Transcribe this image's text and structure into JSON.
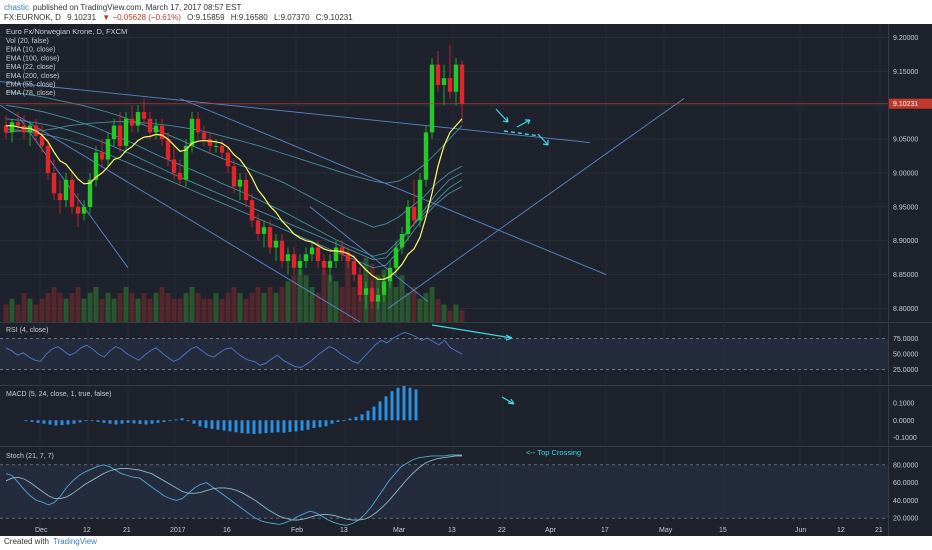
{
  "header": {
    "user": "chastic",
    "published_text": "published on TradingView.com, March 17, 2017 08:57 EST",
    "symbol": "FX:EURNOK, D",
    "last": "9.10231",
    "change": "▼ −0.05628 (−0.61%)",
    "open": "O:9.15859",
    "high": "H:9.16580",
    "low": "L:9.07370",
    "close": "C:9.10231"
  },
  "footer": {
    "created_with": "Created with",
    "brand": "TradingView"
  },
  "colors": {
    "background": "#1e222d",
    "bull": "#26c926",
    "bear": "#e0262a",
    "ema_short": "#ffff66",
    "ema_lines": "#4fa0b0",
    "trendline": "#5a86c8",
    "annotation": "#40d8e0",
    "price_line": "#c0392b"
  },
  "chart_data": [
    {
      "type": "candlestick",
      "title": "Euro Fx/Norwegian Krone, D, FXCM",
      "legend": [
        "Vol (20, false)",
        "EMA (10, close)",
        "EMA (100, close)",
        "EMA (22, close)",
        "EMA (200, close)",
        "EMA (55, close)",
        "EMA (78, close)"
      ],
      "y_ticks": [
        "9.20000",
        "9.15000",
        "9.10000",
        "9.05000",
        "9.00000",
        "8.95000",
        "8.90000",
        "8.85000",
        "8.80000"
      ],
      "ylim": [
        8.78,
        9.22
      ],
      "price_label": "9.10231",
      "x_ticks": [
        "Dec",
        "12",
        "21",
        "2017",
        "16",
        "Feb",
        "13",
        "Mar",
        "13",
        "22",
        "Apr",
        "17",
        "May",
        "15",
        "Jun",
        "12",
        "21"
      ],
      "ohlc": [
        [
          9.07,
          9.085,
          9.05,
          9.06
        ],
        [
          9.06,
          9.08,
          9.045,
          9.075
        ],
        [
          9.075,
          9.09,
          9.06,
          9.07
        ],
        [
          9.07,
          9.085,
          9.05,
          9.06
        ],
        [
          9.06,
          9.075,
          9.04,
          9.07
        ],
        [
          9.07,
          9.08,
          9.045,
          9.055
        ],
        [
          9.055,
          9.07,
          9.03,
          9.04
        ],
        [
          9.04,
          9.05,
          8.99,
          9.0
        ],
        [
          9.0,
          9.02,
          8.96,
          8.97
        ],
        [
          8.97,
          8.99,
          8.94,
          8.96
        ],
        [
          8.96,
          9.0,
          8.95,
          8.99
        ],
        [
          8.99,
          9.0,
          8.94,
          8.95
        ],
        [
          8.95,
          8.97,
          8.92,
          8.94
        ],
        [
          8.94,
          8.96,
          8.93,
          8.95
        ],
        [
          8.95,
          9.0,
          8.94,
          8.99
        ],
        [
          8.99,
          9.04,
          8.98,
          9.03
        ],
        [
          9.03,
          9.05,
          9.01,
          9.02
        ],
        [
          9.02,
          9.06,
          9.01,
          9.05
        ],
        [
          9.05,
          9.08,
          9.04,
          9.07
        ],
        [
          9.07,
          9.09,
          9.03,
          9.04
        ],
        [
          9.04,
          9.09,
          9.03,
          9.08
        ],
        [
          9.08,
          9.1,
          9.06,
          9.07
        ],
        [
          9.07,
          9.1,
          9.06,
          9.09
        ],
        [
          9.09,
          9.11,
          9.07,
          9.08
        ],
        [
          9.08,
          9.09,
          9.05,
          9.06
        ],
        [
          9.06,
          9.08,
          9.05,
          9.07
        ],
        [
          9.07,
          9.08,
          9.04,
          9.05
        ],
        [
          9.05,
          9.06,
          9.01,
          9.02
        ],
        [
          9.02,
          9.04,
          8.99,
          9.0
        ],
        [
          9.0,
          9.02,
          8.98,
          8.99
        ],
        [
          8.99,
          9.05,
          8.98,
          9.04
        ],
        [
          9.04,
          9.09,
          9.03,
          9.08
        ],
        [
          9.08,
          9.09,
          9.05,
          9.06
        ],
        [
          9.06,
          9.07,
          9.04,
          9.05
        ],
        [
          9.05,
          9.06,
          9.03,
          9.04
        ],
        [
          9.04,
          9.05,
          9.03,
          9.04
        ],
        [
          9.04,
          9.05,
          9.02,
          9.03
        ],
        [
          9.03,
          9.04,
          9.0,
          9.01
        ],
        [
          9.01,
          9.02,
          8.97,
          8.98
        ],
        [
          8.98,
          9.0,
          8.96,
          8.99
        ],
        [
          8.99,
          9.0,
          8.95,
          8.96
        ],
        [
          8.96,
          8.97,
          8.92,
          8.93
        ],
        [
          8.93,
          8.94,
          8.9,
          8.91
        ],
        [
          8.91,
          8.93,
          8.89,
          8.92
        ],
        [
          8.92,
          8.93,
          8.88,
          8.89
        ],
        [
          8.89,
          8.91,
          8.87,
          8.9
        ],
        [
          8.9,
          8.91,
          8.86,
          8.87
        ],
        [
          8.87,
          8.89,
          8.85,
          8.88
        ],
        [
          8.88,
          8.89,
          8.85,
          8.86
        ],
        [
          8.86,
          8.88,
          8.85,
          8.87
        ],
        [
          8.87,
          8.89,
          8.86,
          8.88
        ],
        [
          8.88,
          8.9,
          8.87,
          8.89
        ],
        [
          8.89,
          8.9,
          8.86,
          8.87
        ],
        [
          8.87,
          8.88,
          8.85,
          8.86
        ],
        [
          8.86,
          8.88,
          8.84,
          8.87
        ],
        [
          8.87,
          8.9,
          8.86,
          8.89
        ],
        [
          8.89,
          8.9,
          8.87,
          8.88
        ],
        [
          8.88,
          8.89,
          8.86,
          8.87
        ],
        [
          8.87,
          8.88,
          8.84,
          8.85
        ],
        [
          8.85,
          8.86,
          8.81,
          8.82
        ],
        [
          8.82,
          8.84,
          8.8,
          8.83
        ],
        [
          8.83,
          8.84,
          8.8,
          8.81
        ],
        [
          8.81,
          8.83,
          8.8,
          8.82
        ],
        [
          8.82,
          8.85,
          8.81,
          8.84
        ],
        [
          8.84,
          8.87,
          8.83,
          8.86
        ],
        [
          8.86,
          8.9,
          8.85,
          8.89
        ],
        [
          8.89,
          8.92,
          8.88,
          8.91
        ],
        [
          8.91,
          8.96,
          8.9,
          8.95
        ],
        [
          8.95,
          8.99,
          8.92,
          8.93
        ],
        [
          8.93,
          9.0,
          8.92,
          8.99
        ],
        [
          8.99,
          9.07,
          8.98,
          9.06
        ],
        [
          9.06,
          9.17,
          9.05,
          9.16
        ],
        [
          9.16,
          9.18,
          9.12,
          9.13
        ],
        [
          9.13,
          9.16,
          9.1,
          9.14
        ],
        [
          9.14,
          9.19,
          9.11,
          9.12
        ],
        [
          9.12,
          9.17,
          9.1,
          9.16
        ],
        [
          9.16,
          9.166,
          9.074,
          9.102
        ]
      ],
      "volume": [
        3,
        4,
        3,
        5,
        4,
        3,
        4,
        5,
        6,
        5,
        4,
        5,
        6,
        4,
        5,
        6,
        4,
        5,
        4,
        5,
        6,
        5,
        4,
        5,
        4,
        5,
        6,
        5,
        4,
        4,
        5,
        6,
        5,
        4,
        4,
        5,
        4,
        5,
        6,
        5,
        4,
        5,
        6,
        5,
        6,
        5,
        6,
        7,
        8,
        9,
        8,
        6,
        5,
        9,
        8,
        7,
        6,
        12,
        6,
        7,
        11,
        10,
        8,
        9,
        7,
        6,
        8,
        5,
        6,
        4,
        5,
        6,
        4,
        3,
        2,
        3,
        2,
        2
      ],
      "ema_short": [
        9.07,
        9.07,
        9.068,
        9.066,
        9.066,
        9.062,
        9.056,
        9.046,
        9.031,
        9.018,
        9.013,
        9.002,
        8.991,
        8.984,
        8.985,
        8.994,
        9.0,
        9.009,
        9.02,
        9.023,
        9.033,
        9.039,
        9.048,
        9.053,
        9.054,
        9.057,
        9.056,
        9.05,
        9.041,
        9.032,
        9.034,
        9.044,
        9.047,
        9.048,
        9.047,
        9.046,
        9.044,
        9.038,
        9.027,
        9.02,
        9.008,
        8.993,
        8.975,
        8.964,
        8.951,
        8.942,
        8.929,
        8.92,
        8.91,
        8.904,
        8.9,
        8.898,
        8.893,
        8.888,
        8.885,
        8.885,
        8.884,
        8.881,
        8.876,
        8.866,
        8.857,
        8.849,
        8.843,
        8.843,
        8.847,
        8.855,
        8.865,
        8.88,
        8.888,
        8.905,
        8.935,
        8.97,
        9.01,
        9.04,
        9.06,
        9.07,
        9.08
      ],
      "ema_lines": [
        [
          9.12,
          9.118,
          9.115,
          9.112,
          9.108,
          9.104,
          9.1,
          9.095,
          9.09,
          9.084,
          9.077,
          9.07,
          9.063,
          9.055,
          9.047,
          9.038,
          9.03,
          9.022,
          9.015,
          9.008,
          9.0,
          8.993,
          8.985,
          8.975,
          8.965,
          8.955,
          8.945,
          8.935,
          8.928,
          8.92,
          8.925,
          8.935,
          8.95,
          8.965,
          8.985,
          9.0,
          9.01
        ],
        [
          9.1,
          9.097,
          9.094,
          9.09,
          9.085,
          9.08,
          9.074,
          9.068,
          9.06,
          9.052,
          9.044,
          9.035,
          9.026,
          9.018,
          9.01,
          9.002,
          8.994,
          8.985,
          8.977,
          8.969,
          8.96,
          8.951,
          8.942,
          8.932,
          8.922,
          8.912,
          8.902,
          8.893,
          8.885,
          8.877,
          8.882,
          8.9,
          8.92,
          8.945,
          8.97,
          8.99,
          9.0
        ],
        [
          9.08,
          9.078,
          9.075,
          9.072,
          9.068,
          9.063,
          9.057,
          9.05,
          9.043,
          9.035,
          9.027,
          9.018,
          9.009,
          9.0,
          8.992,
          8.984,
          8.976,
          8.968,
          8.96,
          8.952,
          8.944,
          8.936,
          8.928,
          8.92,
          8.912,
          8.904,
          8.896,
          8.888,
          8.88,
          8.872,
          8.875,
          8.895,
          8.92,
          8.94,
          8.96,
          8.978,
          8.99
        ],
        [
          9.065,
          9.063,
          9.06,
          9.057,
          9.053,
          9.048,
          9.042,
          9.035,
          9.028,
          9.02,
          9.012,
          9.004,
          8.996,
          8.988,
          8.98,
          8.972,
          8.964,
          8.956,
          8.948,
          8.94,
          8.932,
          8.924,
          8.916,
          8.908,
          8.9,
          8.892,
          8.884,
          8.876,
          8.868,
          8.86,
          8.864,
          8.885,
          8.91,
          8.935,
          8.955,
          8.97,
          8.98
        ],
        [
          9.06,
          9.062,
          9.062,
          9.063,
          9.066,
          9.07,
          9.072,
          9.074,
          9.075,
          9.076,
          9.075,
          9.074,
          9.072,
          9.07,
          9.067,
          9.064,
          9.06,
          9.055,
          9.05,
          9.045,
          9.04,
          9.034,
          9.028,
          9.022,
          9.016,
          9.01,
          9.004,
          8.998,
          8.993,
          8.988,
          8.985,
          8.988,
          8.998,
          9.012,
          9.03,
          9.05,
          9.07
        ]
      ],
      "rsi": [
        60,
        55,
        48,
        52,
        45,
        40,
        38,
        50,
        58,
        62,
        55,
        48,
        52,
        60,
        64,
        58,
        50,
        45,
        55,
        62,
        58,
        50,
        45,
        40,
        48,
        55,
        60,
        52,
        45,
        38,
        42,
        50,
        58,
        62,
        55,
        48,
        45,
        52,
        58,
        60,
        52,
        45,
        40,
        38,
        32,
        35,
        42,
        48,
        40,
        35,
        30,
        28,
        33,
        40,
        48,
        55,
        62,
        58,
        50,
        45,
        38,
        35,
        45,
        55,
        65,
        72,
        68,
        75,
        80,
        85,
        82,
        78,
        72,
        76,
        70,
        65,
        72,
        60,
        55,
        50
      ]
    },
    {
      "type": "line",
      "title": "RSI (4, close)",
      "y_ticks": [
        "75.0000",
        "50.0000",
        "25.0000"
      ],
      "ylim": [
        0,
        100
      ]
    },
    {
      "type": "bar",
      "title": "MACD (5, 24, close, 1, true, false)",
      "y_ticks": [
        "0.1000",
        "0.0000",
        "-0.1000"
      ],
      "ylim": [
        -0.15,
        0.2
      ],
      "values": [
        -0.005,
        -0.01,
        -0.015,
        -0.02,
        -0.025,
        -0.03,
        -0.028,
        -0.025,
        -0.02,
        -0.012,
        -0.005,
        0.0,
        -0.01,
        -0.015,
        -0.02,
        -0.025,
        -0.02,
        -0.015,
        -0.018,
        -0.022,
        -0.025,
        -0.02,
        -0.015,
        -0.01,
        -0.005,
        0.005,
        0.012,
        -0.005,
        -0.02,
        -0.035,
        -0.045,
        -0.05,
        -0.055,
        -0.06,
        -0.065,
        -0.07,
        -0.075,
        -0.078,
        -0.08,
        -0.078,
        -0.075,
        -0.072,
        -0.07,
        -0.072,
        -0.068,
        -0.065,
        -0.06,
        -0.055,
        -0.045,
        -0.04,
        -0.035,
        -0.02,
        -0.01,
        0.0,
        0.01,
        0.02,
        0.035,
        0.055,
        0.08,
        0.11,
        0.14,
        0.17,
        0.19,
        0.2,
        0.19,
        0.18
      ]
    },
    {
      "type": "line",
      "title": "Stoch (21, 7, 7)",
      "y_ticks": [
        "80.0000",
        "60.0000",
        "40.0000",
        "20.0000"
      ],
      "ylim": [
        0,
        100
      ],
      "annotation": "<-- Top Crossing",
      "k": [
        70,
        68,
        60,
        52,
        45,
        40,
        38,
        35,
        38,
        45,
        55,
        62,
        68,
        72,
        75,
        78,
        80,
        78,
        74,
        70,
        68,
        66,
        65,
        60,
        55,
        50,
        45,
        42,
        40,
        42,
        48,
        54,
        58,
        60,
        55,
        50,
        45,
        40,
        35,
        30,
        25,
        20,
        17,
        15,
        14,
        13,
        15,
        18,
        22,
        25,
        28,
        26,
        22,
        18,
        15,
        13,
        12,
        14,
        18,
        24,
        32,
        42,
        52,
        62,
        70,
        78,
        82,
        86,
        88,
        89,
        90,
        90,
        90,
        91,
        91,
        91
      ],
      "d": [
        62,
        65,
        66,
        64,
        60,
        55,
        50,
        45,
        42,
        42,
        44,
        48,
        53,
        58,
        62,
        66,
        70,
        73,
        75,
        76,
        76,
        75,
        74,
        72,
        70,
        66,
        62,
        58,
        54,
        50,
        48,
        48,
        49,
        51,
        53,
        54,
        54,
        53,
        51,
        48,
        44,
        40,
        35,
        30,
        26,
        22,
        20,
        18,
        18,
        19,
        21,
        23,
        24,
        24,
        23,
        21,
        19,
        18,
        18,
        19,
        22,
        27,
        33,
        40,
        48,
        56,
        64,
        71,
        77,
        82,
        85,
        87,
        88,
        89,
        90,
        90
      ]
    }
  ]
}
